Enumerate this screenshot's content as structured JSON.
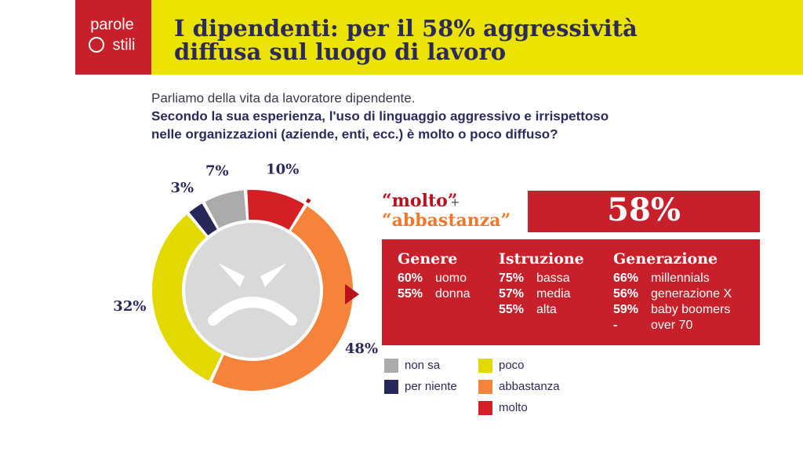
{
  "header": {
    "logo": [
      "parole",
      "stili"
    ],
    "title": [
      "I dipendenti: per il 58% aggressività",
      "diffusa sul luogo di lavoro"
    ]
  },
  "question": {
    "intro": "Parliamo della vita da lavoratore dipendente.",
    "lines": [
      "Secondo la sua esperienza, l'uso di linguaggio aggressivo e irrispettoso",
      "nelle organizzazioni (aziende, enti, ecc.) è molto o poco diffuso?"
    ]
  },
  "chart_data": {
    "type": "donut",
    "categories": [
      "non sa",
      "per niente",
      "poco",
      "abbastanza",
      "molto"
    ],
    "values": [
      7,
      3,
      32,
      48,
      10
    ],
    "value_labels": [
      "7%",
      "3%",
      "32%",
      "48%",
      "10%"
    ],
    "colors": [
      "#ababab",
      "#27275a",
      "#e3d900",
      "#f5833a",
      "#d51f27"
    ]
  },
  "summary": {
    "label": [
      "“molto”",
      "+",
      "“abbastanza”"
    ],
    "total": "58%",
    "groups": [
      {
        "title": "Genere",
        "rows": [
          [
            "60%",
            "uomo"
          ],
          [
            "55%",
            "donna"
          ]
        ]
      },
      {
        "title": "Istruzione",
        "rows": [
          [
            "75%",
            "bassa"
          ],
          [
            "57%",
            "media"
          ],
          [
            "55%",
            "alta"
          ]
        ]
      },
      {
        "title": "Generazione",
        "rows": [
          [
            "66%",
            "millennials"
          ],
          [
            "56%",
            "generazione X"
          ],
          [
            "59%",
            "baby boomers"
          ],
          [
            "-",
            "over 70"
          ]
        ]
      }
    ]
  }
}
